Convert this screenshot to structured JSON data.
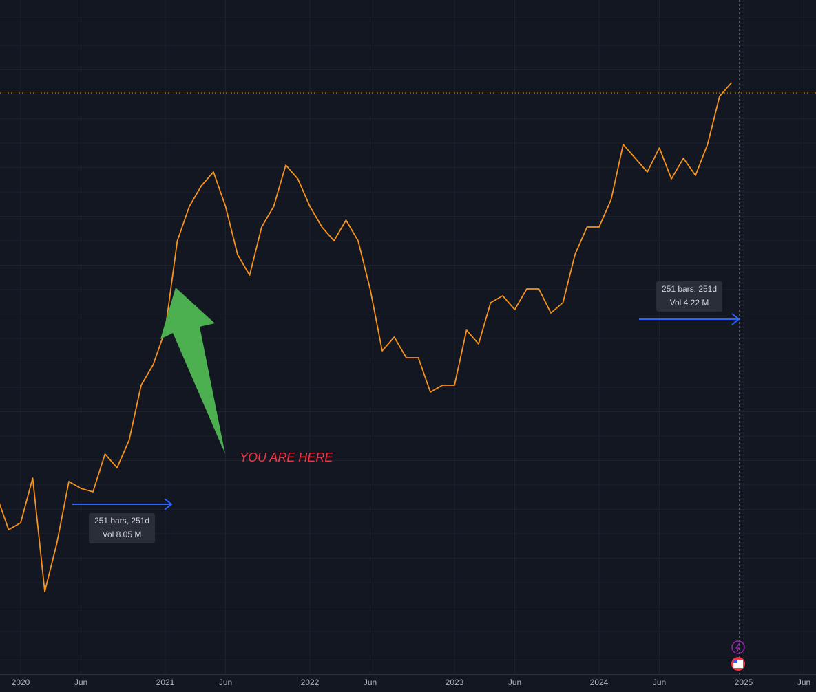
{
  "chart_data": {
    "type": "line",
    "x": [
      "2019-11",
      "2019-12",
      "2020-01",
      "2020-02",
      "2020-03",
      "2020-04",
      "2020-05",
      "2020-06",
      "2020-07",
      "2020-08",
      "2020-09",
      "2020-10",
      "2020-11",
      "2020-12",
      "2021-01",
      "2021-02",
      "2021-03",
      "2021-04",
      "2021-05",
      "2021-06",
      "2021-07",
      "2021-08",
      "2021-09",
      "2021-10",
      "2021-11",
      "2021-12",
      "2022-01",
      "2022-02",
      "2022-03",
      "2022-04",
      "2022-05",
      "2022-06",
      "2022-07",
      "2022-08",
      "2022-09",
      "2022-10",
      "2022-11",
      "2022-12",
      "2023-01",
      "2023-02",
      "2023-03",
      "2023-04",
      "2023-05",
      "2023-06",
      "2023-07",
      "2023-08",
      "2023-09",
      "2023-10",
      "2023-11",
      "2023-12",
      "2024-01",
      "2024-02",
      "2024-03",
      "2024-04",
      "2024-05",
      "2024-06",
      "2024-07",
      "2024-08",
      "2024-09",
      "2024-10",
      "2024-11",
      "2024-12"
    ],
    "values": [
      280,
      230,
      240,
      305,
      140,
      210,
      300,
      290,
      285,
      340,
      320,
      360,
      440,
      470,
      520,
      650,
      700,
      730,
      750,
      700,
      630,
      600,
      670,
      700,
      760,
      740,
      700,
      670,
      650,
      680,
      650,
      580,
      490,
      510,
      480,
      480,
      430,
      440,
      440,
      520,
      500,
      560,
      570,
      550,
      580,
      580,
      545,
      560,
      630,
      670,
      670,
      710,
      790,
      770,
      750,
      785,
      740,
      770,
      745,
      790,
      860,
      880
    ],
    "color": "#f7931a",
    "xlim": [
      "2019-11",
      "2025-07"
    ],
    "ylim": [
      0,
      1000
    ],
    "xticks": [
      {
        "value": "2020-01",
        "label": "2020"
      },
      {
        "value": "2020-06",
        "label": "Jun"
      },
      {
        "value": "2021-01",
        "label": "2021"
      },
      {
        "value": "2021-06",
        "label": "Jun"
      },
      {
        "value": "2022-01",
        "label": "2022"
      },
      {
        "value": "2022-06",
        "label": "Jun"
      },
      {
        "value": "2023-01",
        "label": "2023"
      },
      {
        "value": "2023-06",
        "label": "Jun"
      },
      {
        "value": "2024-01",
        "label": "2024"
      },
      {
        "value": "2024-06",
        "label": "Jun"
      },
      {
        "value": "2025-01",
        "label": "2025"
      },
      {
        "value": "2025-06",
        "label": "Jun"
      }
    ],
    "grid": true,
    "price_line": 865,
    "annotation": "YOU ARE HERE",
    "measures": [
      {
        "bars": "251 bars, 251d",
        "volume": "Vol 8.05 M"
      },
      {
        "bars": "251 bars, 251d",
        "volume": "Vol 4.22 M"
      }
    ]
  }
}
